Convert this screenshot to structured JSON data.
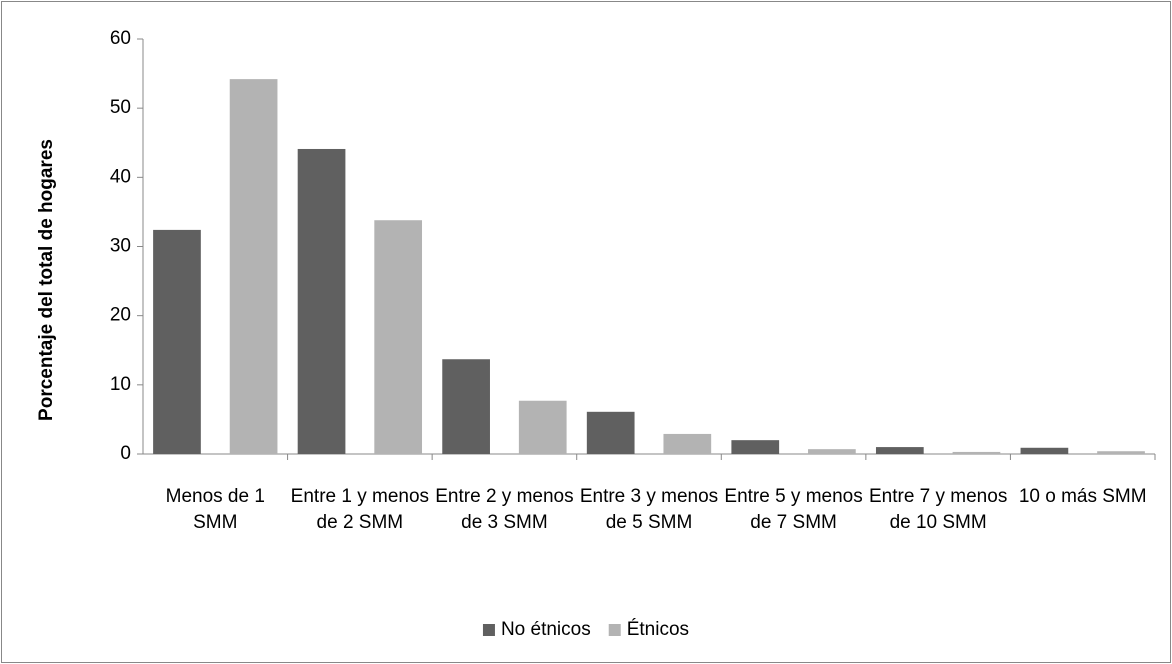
{
  "chart_data": {
    "type": "bar",
    "y_label": "Porcentaje del total de hogares",
    "categories": [
      "Menos de 1 SMM",
      "Entre 1 y menos de 2 SMM",
      "Entre 2 y menos de 3 SMM",
      "Entre 3 y menos de 5 SMM",
      "Entre 5 y menos de 7 SMM",
      "Entre 7 y menos de 10 SMM",
      "10 o más SMM"
    ],
    "series": [
      {
        "name": "No étnicos",
        "color": "#606060",
        "values": [
          32.4,
          44.1,
          13.7,
          6.1,
          2.0,
          1.0,
          0.9
        ]
      },
      {
        "name": "Étnicos",
        "color": "#b3b3b3",
        "values": [
          54.2,
          33.8,
          7.7,
          2.9,
          0.7,
          0.3,
          0.4
        ]
      }
    ],
    "ylim": [
      0,
      60
    ],
    "yticks": [
      0,
      10,
      20,
      30,
      40,
      50,
      60
    ],
    "grid": false,
    "legend": "bottom"
  }
}
